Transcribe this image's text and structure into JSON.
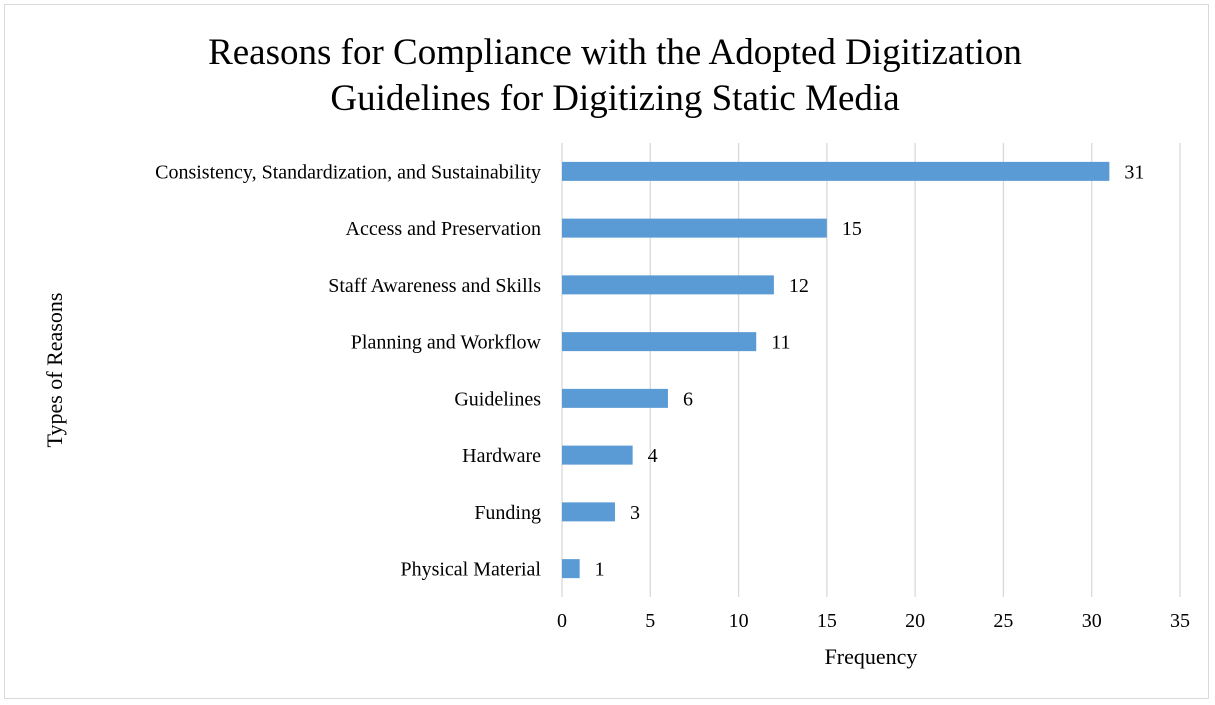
{
  "chart_data": {
    "type": "bar",
    "orientation": "horizontal",
    "title": "Reasons for Compliance with the Adopted Digitization\nGuidelines for Digitizing Static Media",
    "xlabel": "Frequency",
    "ylabel": "Types of Reasons",
    "categories": [
      "Consistency, Standardization, and Sustainability",
      "Access and Preservation",
      "Staff Awareness and Skills",
      "Planning and Workflow",
      "Guidelines",
      "Hardware",
      "Funding",
      "Physical Material"
    ],
    "values": [
      31,
      15,
      12,
      11,
      6,
      4,
      3,
      1
    ],
    "xlim": [
      0,
      35
    ],
    "xticks": [
      0,
      5,
      10,
      15,
      20,
      25,
      30,
      35
    ],
    "grid": "vertical",
    "legend": "none",
    "data_labels": true,
    "bar_color": "#5b9bd5",
    "grid_color": "#d9d9d9"
  }
}
